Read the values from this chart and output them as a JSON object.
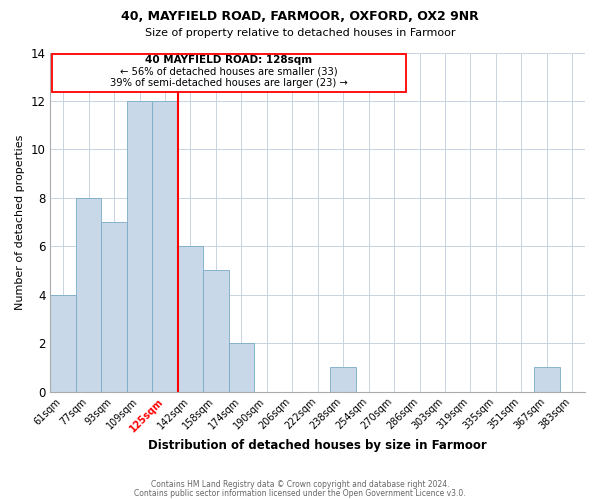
{
  "title1": "40, MAYFIELD ROAD, FARMOOR, OXFORD, OX2 9NR",
  "title2": "Size of property relative to detached houses in Farmoor",
  "xlabel": "Distribution of detached houses by size in Farmoor",
  "ylabel": "Number of detached properties",
  "bar_labels": [
    "61sqm",
    "77sqm",
    "93sqm",
    "109sqm",
    "125sqm",
    "142sqm",
    "158sqm",
    "174sqm",
    "190sqm",
    "206sqm",
    "222sqm",
    "238sqm",
    "254sqm",
    "270sqm",
    "286sqm",
    "303sqm",
    "319sqm",
    "335sqm",
    "351sqm",
    "367sqm",
    "383sqm"
  ],
  "bar_values": [
    4,
    8,
    7,
    12,
    12,
    6,
    5,
    2,
    0,
    0,
    0,
    1,
    0,
    0,
    0,
    0,
    0,
    0,
    0,
    1,
    0
  ],
  "bar_color": "#c8d8e8",
  "bar_edge_color": "#7aaac8",
  "redline_x": 4.5,
  "redline_label_idx": 4,
  "annotation_title": "40 MAYFIELD ROAD: 128sqm",
  "annotation_line1": "← 56% of detached houses are smaller (33)",
  "annotation_line2": "39% of semi-detached houses are larger (23) →",
  "ylim": [
    0,
    14
  ],
  "yticks": [
    0,
    2,
    4,
    6,
    8,
    10,
    12,
    14
  ],
  "footer1": "Contains HM Land Registry data © Crown copyright and database right 2024.",
  "footer2": "Contains public sector information licensed under the Open Government Licence v3.0."
}
